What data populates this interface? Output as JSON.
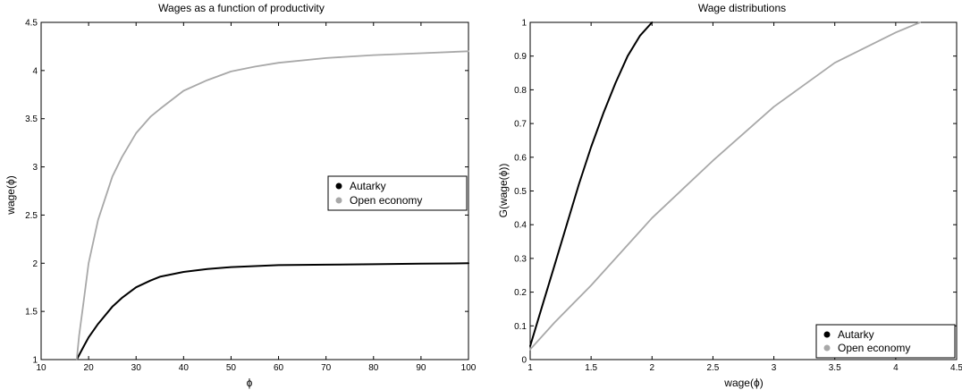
{
  "chart_data": [
    {
      "type": "line",
      "title": "Wages as a function of productivity",
      "xlabel": "ϕ",
      "ylabel": "wage(ϕ)",
      "xlim": [
        10,
        100
      ],
      "ylim": [
        1,
        4.5
      ],
      "xticks": [
        10,
        20,
        30,
        40,
        50,
        60,
        70,
        80,
        90,
        100
      ],
      "yticks": [
        1,
        1.5,
        2,
        2.5,
        3,
        3.5,
        4,
        4.5
      ],
      "xtick_labels": [
        "10",
        "20",
        "30",
        "40",
        "50",
        "60",
        "70",
        "80",
        "90",
        "100"
      ],
      "ytick_labels": [
        "1",
        "1.5",
        "2",
        "2.5",
        "3",
        "3.5",
        "4",
        "4.5"
      ],
      "grid": false,
      "legend": {
        "placement": "right-middle",
        "entries": [
          "Autarky",
          "Open economy"
        ]
      },
      "series": [
        {
          "name": "Autarky",
          "color": "#000000",
          "x": [
            17.5,
            19,
            20,
            22,
            25,
            27,
            30,
            33,
            35,
            40,
            45,
            50,
            55,
            60,
            70,
            80,
            90,
            100
          ],
          "y": [
            1.0,
            1.14,
            1.23,
            1.37,
            1.55,
            1.64,
            1.75,
            1.82,
            1.86,
            1.91,
            1.94,
            1.96,
            1.97,
            1.98,
            1.985,
            1.99,
            1.995,
            2.0
          ]
        },
        {
          "name": "Open economy",
          "color": "#a8a8a8",
          "x": [
            17.5,
            18,
            19,
            20,
            22,
            25,
            27,
            30,
            33,
            35,
            40,
            45,
            50,
            55,
            60,
            70,
            80,
            90,
            100
          ],
          "y": [
            1.0,
            1.25,
            1.62,
            2.0,
            2.45,
            2.9,
            3.1,
            3.35,
            3.52,
            3.6,
            3.79,
            3.9,
            3.99,
            4.04,
            4.08,
            4.13,
            4.16,
            4.18,
            4.2
          ]
        }
      ]
    },
    {
      "type": "line",
      "title": "Wage distributions",
      "xlabel": "wage(ϕ)",
      "ylabel": "G(wage(ϕ))",
      "xlim": [
        1,
        4.5
      ],
      "ylim": [
        0,
        1
      ],
      "xticks": [
        1,
        1.5,
        2,
        2.5,
        3,
        3.5,
        4,
        4.5
      ],
      "yticks": [
        0,
        0.1,
        0.2,
        0.3,
        0.4,
        0.5,
        0.6,
        0.7,
        0.8,
        0.9,
        1
      ],
      "xtick_labels": [
        "1",
        "1.5",
        "2",
        "2.5",
        "3",
        "3.5",
        "4",
        "4.5"
      ],
      "ytick_labels": [
        "0",
        "0.1",
        "0.2",
        "0.3",
        "0.4",
        "0.5",
        "0.6",
        "0.7",
        "0.8",
        "0.9",
        "1"
      ],
      "grid": false,
      "legend": {
        "placement": "bottom-right",
        "entries": [
          "Autarky",
          "Open economy"
        ]
      },
      "series": [
        {
          "name": "Autarky",
          "color": "#000000",
          "x": [
            1.0,
            1.05,
            1.1,
            1.2,
            1.3,
            1.4,
            1.5,
            1.6,
            1.7,
            1.8,
            1.9,
            2.0
          ],
          "y": [
            0.04,
            0.1,
            0.16,
            0.28,
            0.4,
            0.52,
            0.63,
            0.73,
            0.82,
            0.9,
            0.96,
            1.0
          ]
        },
        {
          "name": "Open economy",
          "color": "#a8a8a8",
          "x": [
            1.0,
            1.2,
            1.5,
            2.0,
            2.5,
            3.0,
            3.5,
            4.0,
            4.2
          ],
          "y": [
            0.03,
            0.11,
            0.22,
            0.42,
            0.59,
            0.75,
            0.88,
            0.97,
            1.0
          ]
        }
      ]
    }
  ]
}
